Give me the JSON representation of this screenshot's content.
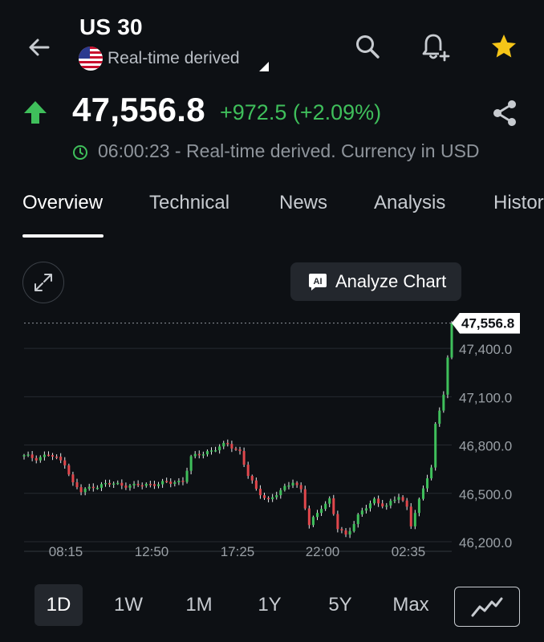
{
  "header": {
    "title": "US 30",
    "subtitle": "Real-time derived",
    "icons": [
      "back-arrow-icon",
      "search-icon",
      "add-alert-icon",
      "star-icon"
    ],
    "star_color": "#f5c518"
  },
  "quote": {
    "price": "47,556.8",
    "change": "+972.5 (+2.09%)",
    "time_info": "06:00:23 - Real-time derived. Currency in USD",
    "positive_color": "#3fbf5b"
  },
  "tabs": [
    {
      "label": "Overview",
      "active": true
    },
    {
      "label": "Technical",
      "active": false
    },
    {
      "label": "News",
      "active": false
    },
    {
      "label": "Analysis",
      "active": false
    },
    {
      "label": "Histor",
      "active": false
    }
  ],
  "analyze_button": {
    "badge": "AI",
    "label": "Analyze Chart"
  },
  "chart_data": {
    "type": "candlestick",
    "current_price": 47556.8,
    "current_price_label": "47,556.8",
    "y_ticks": [
      {
        "value": 47400,
        "label": "47,400.0"
      },
      {
        "value": 47100,
        "label": "47,100.0"
      },
      {
        "value": 46800,
        "label": "46,800.0"
      },
      {
        "value": 46500,
        "label": "46,500.0"
      },
      {
        "value": 46200,
        "label": "46,200.0"
      }
    ],
    "x_ticks": [
      "08:15",
      "12:50",
      "17:25",
      "22:00",
      "02:35"
    ],
    "ylim": [
      46140,
      47620
    ],
    "up_color": "#3fbf5b",
    "down_color": "#e0474c",
    "close_points": [
      [
        0,
        46730
      ],
      [
        3,
        46720
      ],
      [
        6,
        46740
      ],
      [
        10,
        46690
      ],
      [
        12,
        46560
      ],
      [
        14,
        46510
      ],
      [
        17,
        46545
      ],
      [
        22,
        46560
      ],
      [
        27,
        46545
      ],
      [
        32,
        46560
      ],
      [
        36,
        46565
      ],
      [
        39,
        46580
      ],
      [
        41,
        46720
      ],
      [
        45,
        46760
      ],
      [
        50,
        46805
      ],
      [
        53,
        46760
      ],
      [
        55,
        46610
      ],
      [
        57,
        46520
      ],
      [
        60,
        46460
      ],
      [
        63,
        46510
      ],
      [
        66,
        46580
      ],
      [
        68,
        46520
      ],
      [
        70,
        46300
      ],
      [
        73,
        46420
      ],
      [
        75,
        46460
      ],
      [
        77,
        46280
      ],
      [
        79,
        46240
      ],
      [
        82,
        46360
      ],
      [
        86,
        46460
      ],
      [
        89,
        46420
      ],
      [
        92,
        46480
      ],
      [
        94,
        46420
      ],
      [
        95,
        46310
      ],
      [
        97,
        46450
      ],
      [
        99,
        46600
      ],
      [
        100,
        46660
      ],
      [
        101,
        46930
      ],
      [
        103,
        47120
      ],
      [
        104,
        47330
      ],
      [
        105,
        47556.8
      ]
    ]
  },
  "ranges": [
    {
      "label": "1D",
      "active": true
    },
    {
      "label": "1W",
      "active": false
    },
    {
      "label": "1M",
      "active": false
    },
    {
      "label": "1Y",
      "active": false
    },
    {
      "label": "5Y",
      "active": false
    },
    {
      "label": "Max",
      "active": false
    }
  ]
}
